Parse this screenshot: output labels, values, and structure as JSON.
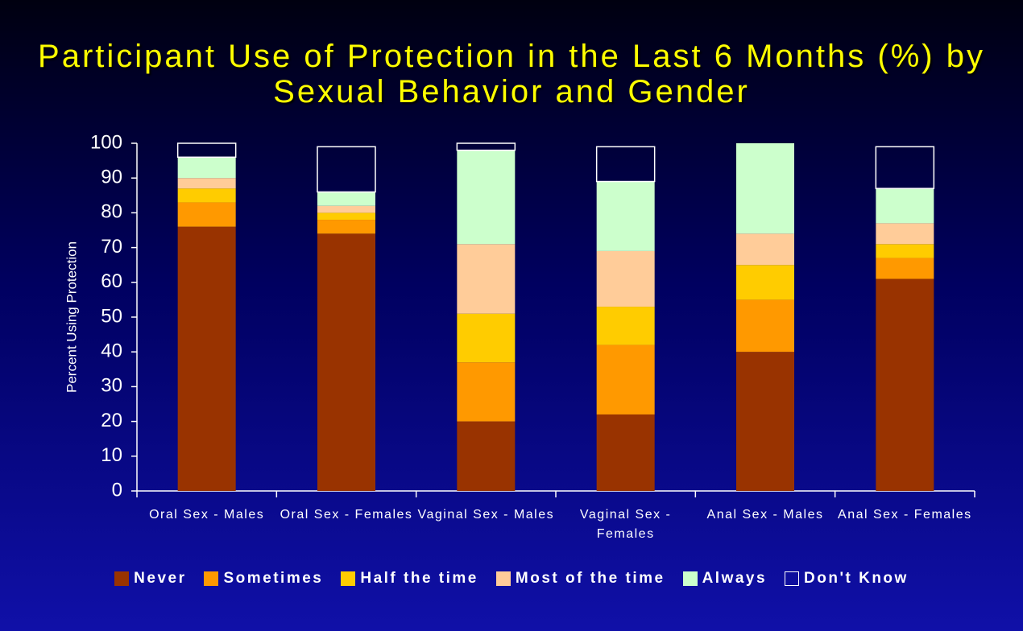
{
  "chart_data": {
    "type": "stacked_bar",
    "title": "Participant Use of Protection in the Last 6 Months (%) by Sexual Behavior and Gender",
    "y_label": "Percent Using Protection",
    "categories": [
      "Oral Sex - Males",
      "Oral Sex - Females",
      "Vaginal Sex - Males",
      "Vaginal Sex - Females",
      "Anal Sex - Males",
      "Anal Sex - Females"
    ],
    "series": [
      {
        "name": "Never",
        "color": "#993300",
        "values": [
          76,
          74,
          20,
          22,
          40,
          61
        ]
      },
      {
        "name": "Sometimes",
        "color": "#ff9900",
        "values": [
          7,
          4,
          17,
          20,
          15,
          6
        ]
      },
      {
        "name": "Half the time",
        "color": "#ffcc00",
        "values": [
          4,
          2,
          14,
          11,
          10,
          4
        ]
      },
      {
        "name": "Most of the time",
        "color": "#ffcc99",
        "values": [
          3,
          2,
          20,
          16,
          9,
          6
        ]
      },
      {
        "name": "Always",
        "color": "#ccffcc",
        "values": [
          6,
          4,
          27,
          20,
          26,
          10
        ]
      },
      {
        "name": "Don't Know",
        "color": "none",
        "values": [
          4,
          13,
          2,
          10,
          0,
          12
        ]
      }
    ],
    "ylim": [
      0,
      100
    ],
    "yticks": [
      0,
      10,
      20,
      30,
      40,
      50,
      60,
      70,
      80,
      90,
      100
    ],
    "legend": "bottom"
  }
}
